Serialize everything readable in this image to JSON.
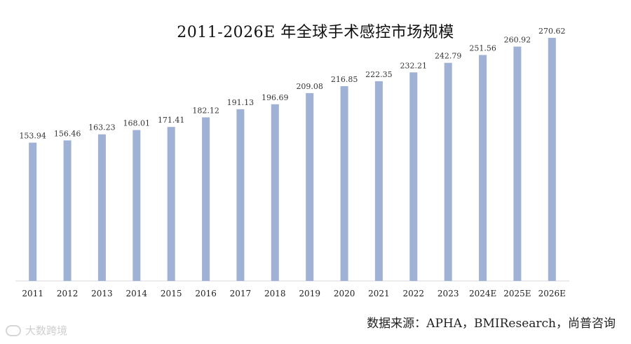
{
  "chart_data": {
    "type": "bar",
    "title": "2011-2026E 年全球手术感控市场规模",
    "categories": [
      "2011",
      "2012",
      "2013",
      "2014",
      "2015",
      "2016",
      "2017",
      "2018",
      "2019",
      "2020",
      "2021",
      "2022",
      "2023",
      "2024E",
      "2025E",
      "2026E"
    ],
    "values": [
      153.94,
      156.46,
      163.23,
      168.01,
      171.41,
      182.12,
      191.13,
      196.69,
      209.08,
      216.85,
      222.35,
      232.21,
      242.79,
      251.56,
      260.92,
      270.62
    ],
    "value_labels": [
      "153.94",
      "156.46",
      "163.23",
      "168.01",
      "171.41",
      "182.12",
      "191.13",
      "196.69",
      "209.08",
      "216.85",
      "222.35",
      "232.21",
      "242.79",
      "251.56",
      "260.92",
      "270.62"
    ],
    "xlabel": "",
    "ylabel": "",
    "ylim": [
      0,
      280
    ],
    "grid": false,
    "bar_color": "#9fb1d4"
  },
  "source": "数据来源：APHA，BMIResearch，尚普咨询",
  "watermark": "大数跨境"
}
